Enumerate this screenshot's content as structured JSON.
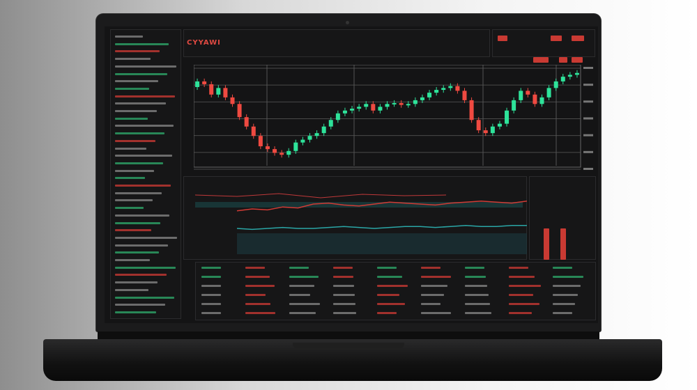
{
  "app": {
    "title": "CYYAWI"
  },
  "colors": {
    "up": "#2ee39a",
    "down": "#ef4a41",
    "background": "#141415",
    "grid": "#555555",
    "accent": "#c93a33"
  },
  "chart_data": {
    "type": "candlestick",
    "first_open": 80,
    "closes": [
      86,
      83,
      72,
      79,
      69,
      62,
      48,
      38,
      28,
      17,
      14,
      10,
      8,
      12,
      21,
      24,
      28,
      31,
      38,
      45,
      52,
      55,
      57,
      59,
      62,
      55,
      59,
      62,
      63,
      61,
      62,
      66,
      69,
      74,
      77,
      79,
      81,
      76,
      66,
      45,
      34,
      31,
      38,
      41,
      55,
      66,
      76,
      72,
      62,
      69,
      79,
      86,
      91,
      93,
      95
    ],
    "ylim": [
      0,
      100
    ],
    "grid": true
  },
  "lower_chart": {
    "series_red": [
      48,
      50,
      49,
      52,
      51,
      55,
      56,
      54,
      53,
      55,
      57,
      56,
      55,
      54,
      56,
      57,
      58,
      57,
      56,
      58
    ],
    "series_teal": [
      30,
      29,
      30,
      31,
      30,
      30,
      31,
      32,
      31,
      30,
      31,
      32,
      32,
      31,
      32,
      33,
      32,
      32,
      33,
      33
    ]
  }
}
